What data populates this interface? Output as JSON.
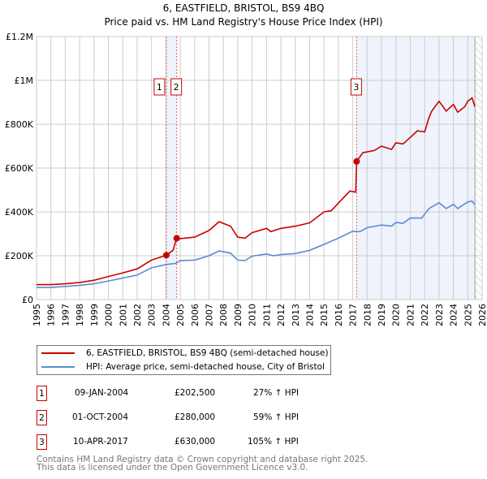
{
  "title": "6, EASTFIELD, BRISTOL, BS9 4BQ",
  "subtitle": "Price paid vs. HM Land Registry's House Price Index (HPI)",
  "chart_data": {
    "type": "line",
    "title": "6, EASTFIELD, BRISTOL, BS9 4BQ — Price paid vs. HM Land Registry's House Price Index (HPI)",
    "xlim": [
      1995,
      2026
    ],
    "ylim": [
      0,
      1200000
    ],
    "y_ticks": [
      {
        "v": 0,
        "label": "£0"
      },
      {
        "v": 200000,
        "label": "£200K"
      },
      {
        "v": 400000,
        "label": "£400K"
      },
      {
        "v": 600000,
        "label": "£600K"
      },
      {
        "v": 800000,
        "label": "£800K"
      },
      {
        "v": 1000000,
        "label": "£1M"
      },
      {
        "v": 1200000,
        "label": "£1.2M"
      }
    ],
    "x_ticks": [
      "1995",
      "1996",
      "1997",
      "1998",
      "1999",
      "2000",
      "2001",
      "2002",
      "2003",
      "2004",
      "2005",
      "2006",
      "2007",
      "2008",
      "2009",
      "2010",
      "2011",
      "2012",
      "2013",
      "2014",
      "2015",
      "2016",
      "2017",
      "2018",
      "2019",
      "2020",
      "2021",
      "2022",
      "2023",
      "2024",
      "2025",
      "2026"
    ],
    "grid": true,
    "series": [
      {
        "name": "6, EASTFIELD, BRISTOL, BS9 4BQ (semi-detached house)",
        "color": "#cc0000",
        "x": [
          1995,
          1996,
          1997,
          1998,
          1999,
          2000,
          2001,
          2002,
          2003,
          2004.03,
          2004.5,
          2004.75,
          2005,
          2006,
          2007,
          2007.7,
          2008.5,
          2009,
          2009.5,
          2010,
          2011,
          2011.3,
          2012,
          2013,
          2014,
          2015,
          2015.5,
          2016,
          2016.8,
          2017.2,
          2017.27,
          2017.7,
          2018.5,
          2019,
          2019.7,
          2020,
          2020.5,
          2021,
          2021.5,
          2022,
          2022.3,
          2022.5,
          2023,
          2023.5,
          2024,
          2024.3,
          2024.8,
          2025,
          2025.3,
          2025.5
        ],
        "y": [
          68000,
          68000,
          72000,
          78000,
          88000,
          105000,
          122000,
          140000,
          180000,
          202500,
          225000,
          280000,
          278000,
          285000,
          315000,
          355000,
          335000,
          285000,
          280000,
          305000,
          325000,
          310000,
          325000,
          335000,
          350000,
          400000,
          405000,
          440000,
          495000,
          490000,
          630000,
          670000,
          680000,
          700000,
          685000,
          715000,
          710000,
          740000,
          770000,
          765000,
          830000,
          860000,
          905000,
          860000,
          890000,
          855000,
          880000,
          905000,
          920000,
          880000
        ]
      },
      {
        "name": "HPI: Average price, semi-detached house, City of Bristol",
        "color": "#5b8bd0",
        "x": [
          1995,
          1996,
          1997,
          1998,
          1999,
          2000,
          2001,
          2002,
          2003,
          2004,
          2004.7,
          2005,
          2006,
          2007,
          2007.7,
          2008.5,
          2009,
          2009.5,
          2010,
          2011,
          2011.5,
          2012,
          2013,
          2014,
          2015,
          2016,
          2017,
          2017.5,
          2018,
          2019,
          2019.7,
          2020,
          2020.5,
          2021,
          2021.8,
          2022.3,
          2023,
          2023.5,
          2024,
          2024.3,
          2025,
          2025.3,
          2025.5
        ],
        "y": [
          55000,
          55000,
          60000,
          65000,
          72000,
          85000,
          98000,
          112000,
          145000,
          160000,
          165000,
          178000,
          180000,
          200000,
          222000,
          212000,
          180000,
          178000,
          198000,
          208000,
          200000,
          205000,
          210000,
          225000,
          252000,
          280000,
          312000,
          310000,
          328000,
          340000,
          335000,
          352000,
          348000,
          372000,
          372000,
          415000,
          442000,
          415000,
          435000,
          415000,
          445000,
          450000,
          432000
        ]
      }
    ],
    "sales": [
      {
        "id": "1",
        "x": 2004.03,
        "y": 202500
      },
      {
        "id": "2",
        "x": 2004.75,
        "y": 280000
      },
      {
        "id": "3",
        "x": 2017.27,
        "y": 630000
      }
    ],
    "shaded": [
      [
        2004.03,
        2004.75
      ],
      [
        2017.27,
        2025.5
      ]
    ],
    "hatched_from": 2025.5
  },
  "legend": {
    "items": [
      "6, EASTFIELD, BRISTOL, BS9 4BQ (semi-detached house)",
      "HPI: Average price, semi-detached house, City of Bristol"
    ]
  },
  "transactions": [
    {
      "id": "1",
      "date": "09-JAN-2004",
      "price": "£202,500",
      "hpi": "27% ↑ HPI"
    },
    {
      "id": "2",
      "date": "01-OCT-2004",
      "price": "£280,000",
      "hpi": "59% ↑ HPI"
    },
    {
      "id": "3",
      "date": "10-APR-2017",
      "price": "£630,000",
      "hpi": "105% ↑ HPI"
    }
  ],
  "footer": [
    "Contains HM Land Registry data © Crown copyright and database right 2025.",
    "This data is licensed under the Open Government Licence v3.0."
  ]
}
